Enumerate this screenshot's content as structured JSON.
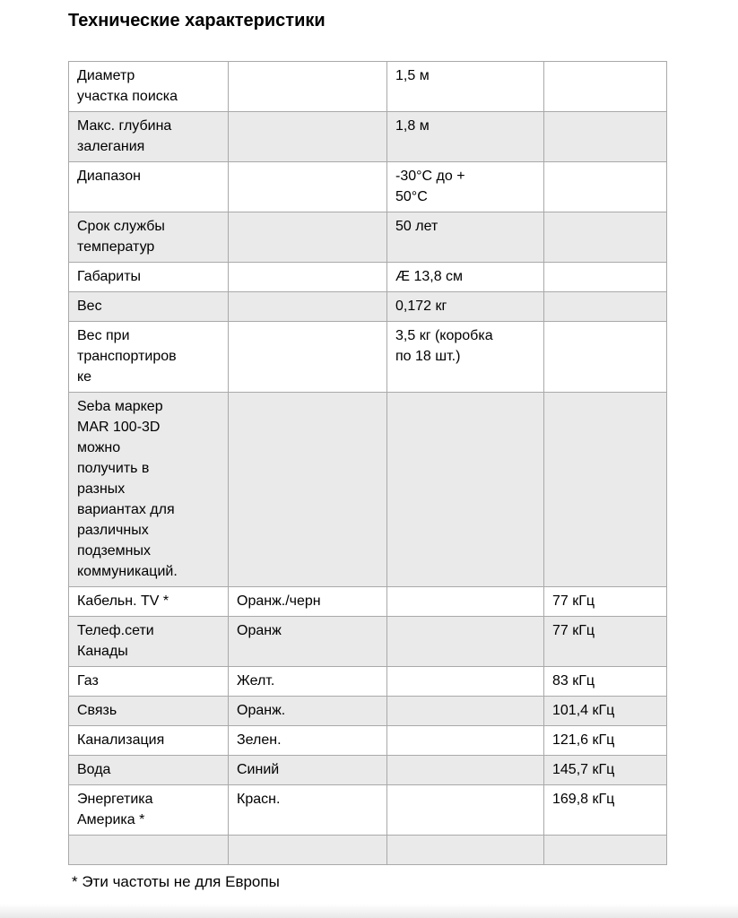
{
  "page": {
    "title": "Технические характеристики",
    "footnote": "* Эти частоты не для Европы"
  },
  "colors": {
    "row_shaded": "#eaeaea",
    "row_plain": "#ffffff",
    "border": "#a9a9a9",
    "text": "#000000"
  },
  "table": {
    "rows": [
      {
        "shaded": false,
        "cells": [
          "Диаметр\nучастка поиска",
          "",
          "1,5 м",
          ""
        ]
      },
      {
        "shaded": true,
        "cells": [
          "Макс. глубина\nзалегания",
          "",
          "1,8 м",
          ""
        ]
      },
      {
        "shaded": false,
        "cells": [
          "Диапазон",
          "",
          "-30°C до +\n50°C",
          ""
        ]
      },
      {
        "shaded": true,
        "cells": [
          "Срок службы\nтемператур",
          "",
          "50 лет",
          ""
        ]
      },
      {
        "shaded": false,
        "cells": [
          "Габариты",
          "",
          "Æ 13,8 см",
          ""
        ]
      },
      {
        "shaded": true,
        "cells": [
          "Вес",
          "",
          "0,172 кг",
          ""
        ]
      },
      {
        "shaded": false,
        "cells": [
          "Вес при\nтранспортиров\nке",
          "",
          "3,5 кг (коробка\nпо 18 шт.)",
          ""
        ]
      },
      {
        "shaded": true,
        "cells": [
          "Seba маркер\nMAR 100-3D\nможно\nполучить в\nразных\nвариантах для\nразличных\nподземных\nкоммуникаций.",
          "",
          "",
          ""
        ]
      },
      {
        "shaded": false,
        "cells": [
          "Кабельн. TV *",
          "Оранж./черн",
          "",
          "77 кГц"
        ]
      },
      {
        "shaded": true,
        "cells": [
          "Телеф.сети\nКанады",
          "Оранж",
          "",
          "77 кГц"
        ]
      },
      {
        "shaded": false,
        "cells": [
          "Газ",
          "Желт.",
          "",
          "83 кГц"
        ]
      },
      {
        "shaded": true,
        "cells": [
          "Связь",
          "Оранж.",
          "",
          "101,4 кГц"
        ]
      },
      {
        "shaded": false,
        "cells": [
          "Канализация",
          "Зелен.",
          "",
          "121,6 кГц"
        ]
      },
      {
        "shaded": true,
        "cells": [
          "Вода",
          "Синий",
          "",
          "145,7 кГц"
        ]
      },
      {
        "shaded": false,
        "cells": [
          "Энергетика\nАмерика *",
          "Красн.",
          "",
          "169,8 кГц"
        ]
      },
      {
        "shaded": true,
        "cells": [
          "",
          "",
          "",
          ""
        ]
      }
    ]
  }
}
